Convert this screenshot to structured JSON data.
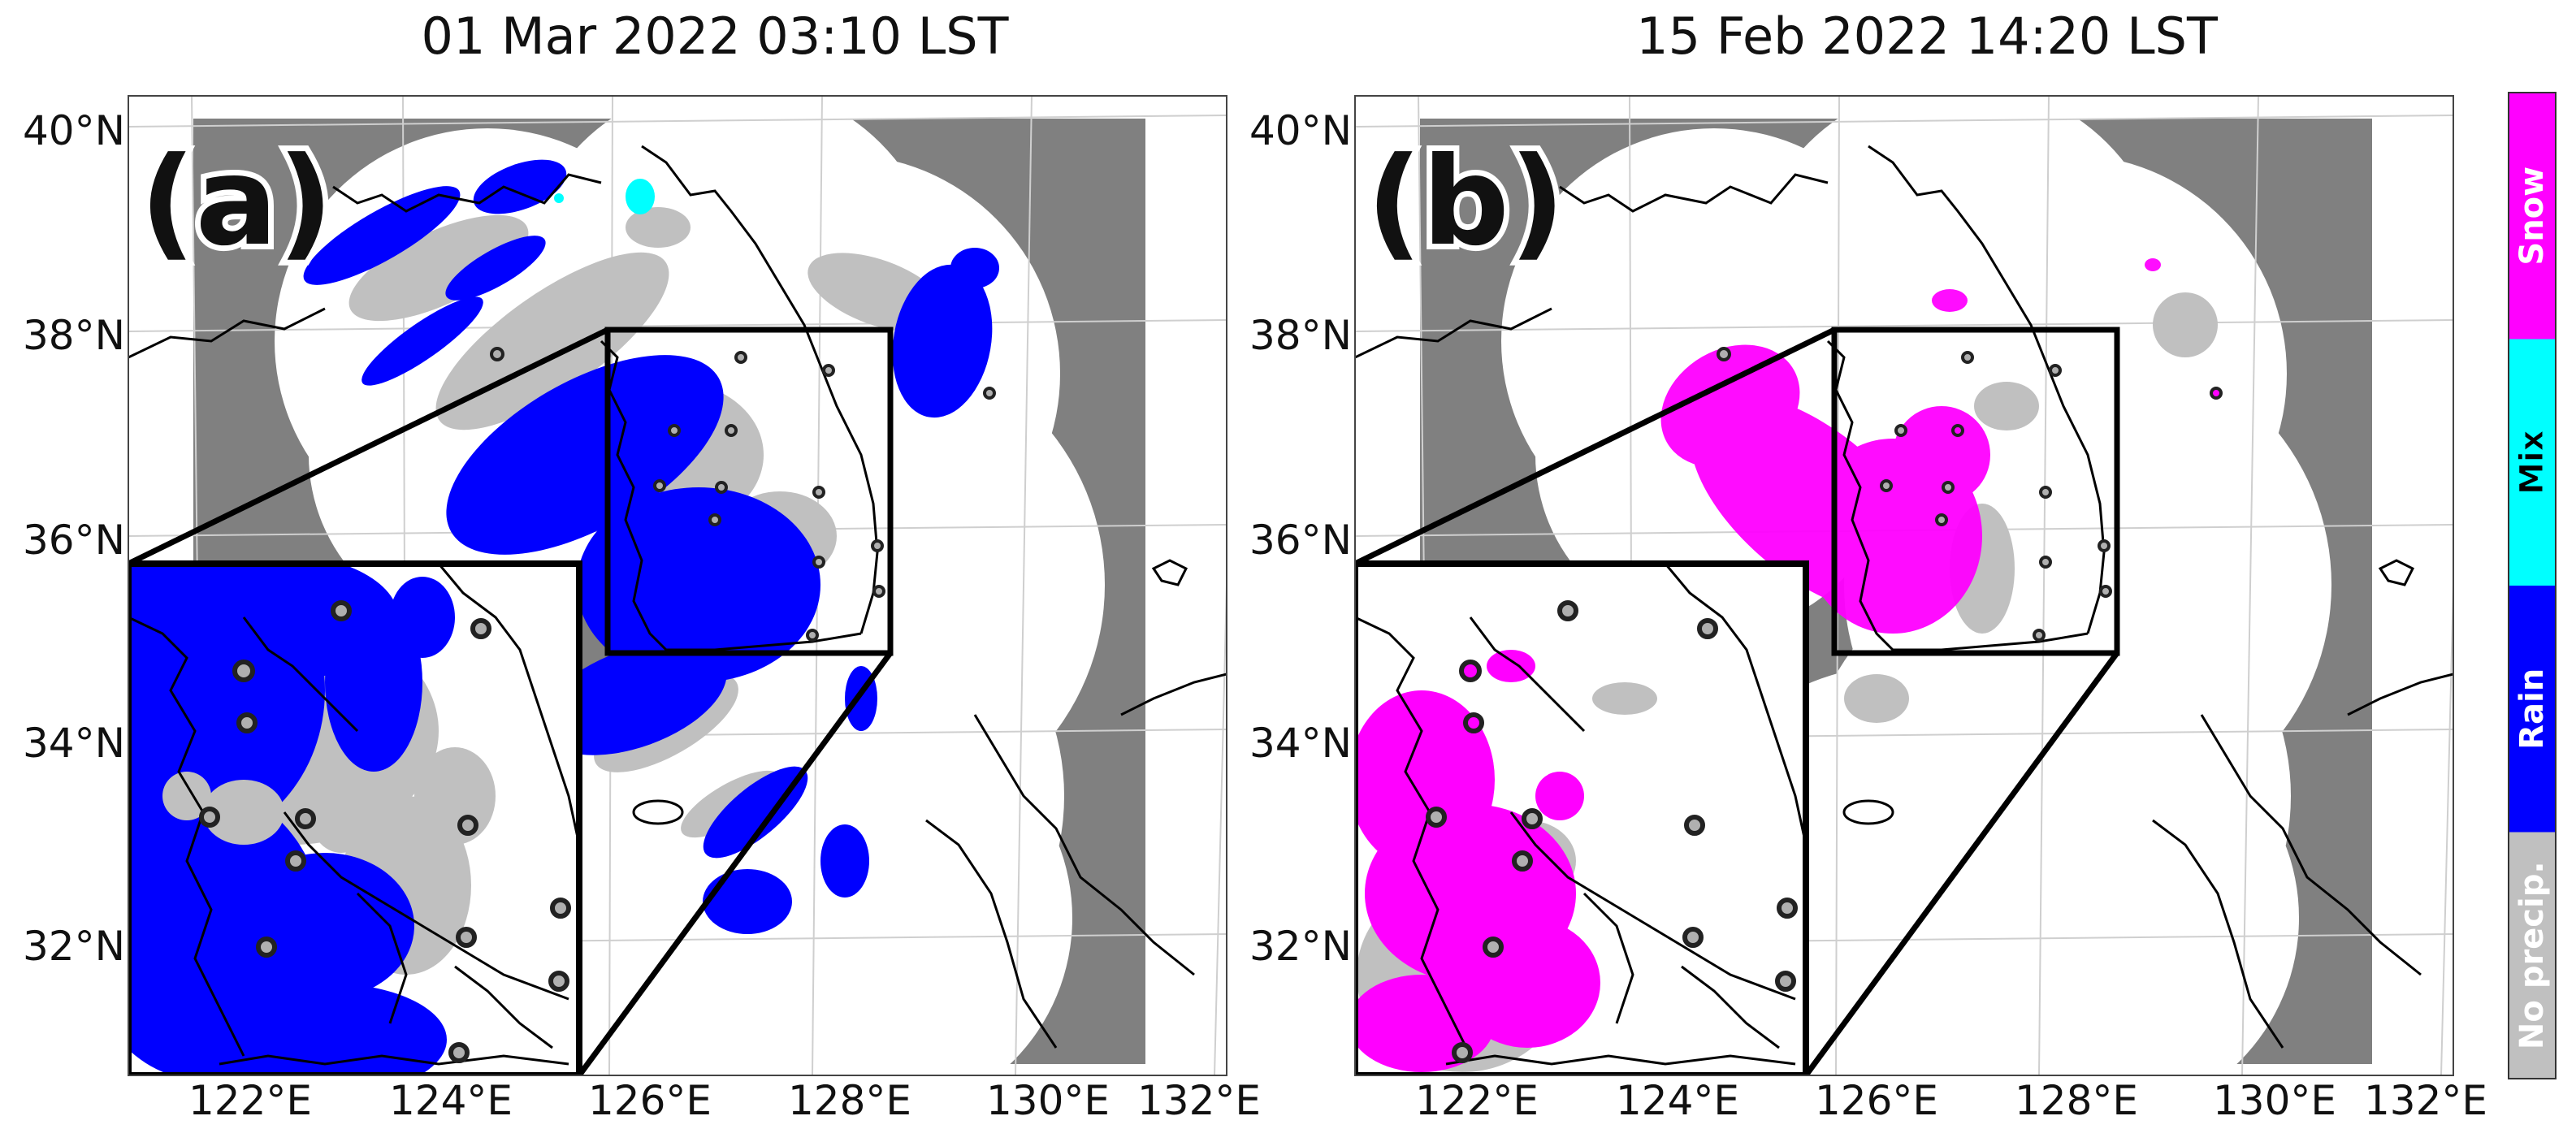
{
  "chart_data": {
    "type": "map",
    "panels": [
      {
        "panel_label": "(a)",
        "title": "01 Mar 2022 03:10 LST",
        "dominant_class": "Rain"
      },
      {
        "panel_label": "(b)",
        "title": "15 Feb 2022 14:20 LST",
        "dominant_class": "Snow"
      }
    ],
    "x_ticks": [
      "122°E",
      "124°E",
      "126°E",
      "128°E",
      "130°E",
      "132°E"
    ],
    "y_ticks": [
      "40°N",
      "38°N",
      "36°N",
      "34°N",
      "32°N"
    ],
    "colorbar": {
      "categories": [
        {
          "label": "Snow",
          "color": "#ff00ff"
        },
        {
          "label": "Mix",
          "color": "#00ffff"
        },
        {
          "label": "Rain",
          "color": "#0000ff"
        },
        {
          "label": "No precip.",
          "color": "#c0c0c0"
        }
      ]
    },
    "colors": {
      "outside_domain": "#808080",
      "radar_coverage": "#ffffff",
      "coastline": "#000000"
    }
  }
}
